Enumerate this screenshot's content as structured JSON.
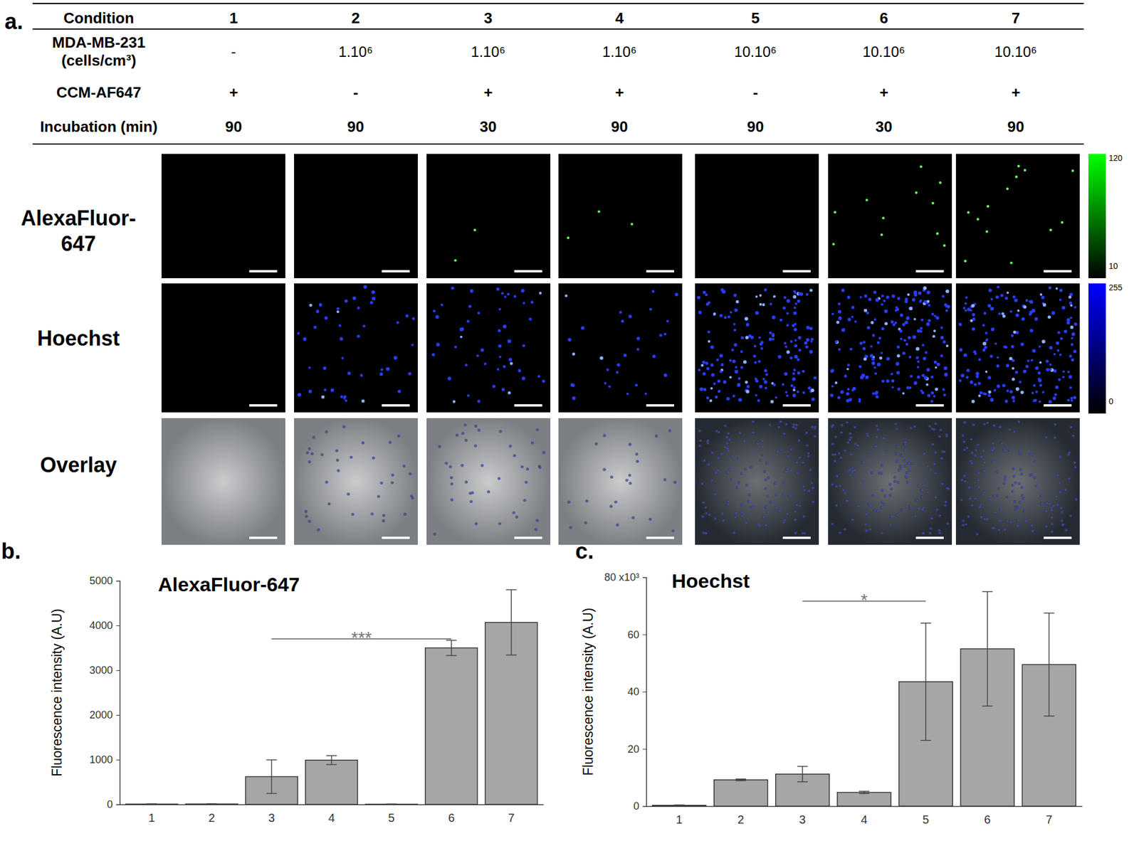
{
  "panel_a": {
    "panel": "a.",
    "table": {
      "rows": [
        {
          "label": [
            "Condition"
          ],
          "cells": [
            1,
            2,
            3,
            4,
            5,
            6,
            7
          ]
        },
        {
          "label": [
            "MDA-MB-231",
            "(cells/cm³)"
          ],
          "cells": [
            "-",
            "1.10⁶",
            "1.10⁶",
            "1.10⁶",
            "10.10⁶",
            "10.10⁶",
            "10.10⁶"
          ]
        },
        {
          "label": [
            "CCM-AF647"
          ],
          "cells": [
            "+",
            "-",
            "+",
            "+",
            "-",
            "+",
            "+"
          ]
        },
        {
          "label": [
            "Incubation (min)"
          ],
          "cells": [
            90,
            90,
            30,
            90,
            90,
            30,
            90
          ]
        }
      ]
    },
    "image_rows": [
      {
        "label": [
          "AlexaFluor-",
          "647"
        ]
      },
      {
        "label": [
          "Hoechst"
        ]
      },
      {
        "label": [
          "Overlay"
        ]
      }
    ],
    "colorbars": [
      {
        "color": "#00ff00",
        "max": 120,
        "min": 10
      },
      {
        "color": "#0000ff",
        "max": 255,
        "min": 0
      }
    ]
  },
  "chart_data": [
    {
      "type": "bar",
      "panel": "b.",
      "title": "AlexaFluor-647",
      "y_label": "Fluorescence intensity (A.U)",
      "categories": [
        "1",
        "2",
        "3",
        "4",
        "5",
        "6",
        "7"
      ],
      "values": [
        8,
        10,
        620,
        990,
        5,
        3500,
        4070
      ],
      "errors": [
        5,
        5,
        375,
        100,
        5,
        170,
        730
      ],
      "color": "#a6a6a6",
      "ylim": [
        0,
        5000
      ],
      "yticks": [
        0,
        1000,
        2000,
        3000,
        4000,
        5000
      ],
      "annotations": [
        {
          "text": "***",
          "from": "3",
          "to": "6"
        }
      ]
    },
    {
      "type": "bar",
      "panel": "c.",
      "title": "Hoechst",
      "y_label": "Fluorescence intensity (A.U)",
      "categories": [
        "1",
        "2",
        "3",
        "4",
        "5",
        "6",
        "7"
      ],
      "values": [
        300,
        9200,
        11200,
        4800,
        43500,
        55000,
        49500
      ],
      "errors": [
        100,
        300,
        2700,
        400,
        20500,
        20000,
        18000
      ],
      "color": "#a6a6a6",
      "ylim": [
        0,
        80000
      ],
      "yticks": [
        {
          "value": 0,
          "label": "0"
        },
        {
          "value": 20000,
          "label": "20"
        },
        {
          "value": 40000,
          "label": "40"
        },
        {
          "value": 60000,
          "label": "60"
        },
        {
          "value": 80000,
          "label": "80 x10³"
        }
      ],
      "annotations": [
        {
          "text": "*",
          "from": "3",
          "to": "5"
        }
      ]
    }
  ]
}
